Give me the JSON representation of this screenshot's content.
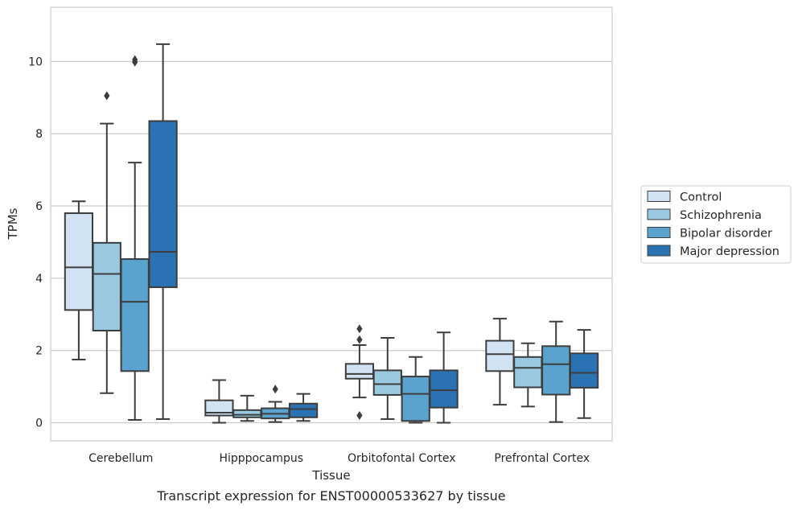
{
  "chart_data": {
    "type": "box",
    "xlabel": "Tissue",
    "ylabel": "TPMs",
    "caption": "Transcript expression for ENST00000533627 by tissue",
    "ylim": [
      -0.5,
      11.5
    ],
    "yticks": [
      0,
      2,
      4,
      6,
      8,
      10
    ],
    "grid": "horizontal",
    "legend_position": "right",
    "categories": [
      "Cerebellum",
      "Hipppocampus",
      "Orbitofontal Cortex",
      "Prefrontal Cortex"
    ],
    "series": [
      {
        "name": "Control",
        "color": "#d1e2f2",
        "boxes": [
          {
            "whislo": 1.75,
            "q1": 3.12,
            "med": 4.3,
            "q3": 5.8,
            "whishi": 6.13,
            "fliers": []
          },
          {
            "whislo": 0.0,
            "q1": 0.2,
            "med": 0.28,
            "q3": 0.62,
            "whishi": 1.18,
            "fliers": []
          },
          {
            "whislo": 0.7,
            "q1": 1.22,
            "med": 1.35,
            "q3": 1.63,
            "whishi": 2.15,
            "fliers": [
              2.6,
              2.3,
              0.2
            ]
          },
          {
            "whislo": 0.5,
            "q1": 1.43,
            "med": 1.9,
            "q3": 2.27,
            "whishi": 2.88,
            "fliers": []
          }
        ]
      },
      {
        "name": "Schizophrenia",
        "color": "#9ac8e0",
        "boxes": [
          {
            "whislo": 0.82,
            "q1": 2.55,
            "med": 4.12,
            "q3": 4.98,
            "whishi": 8.28,
            "fliers": [
              9.05
            ]
          },
          {
            "whislo": 0.05,
            "q1": 0.15,
            "med": 0.22,
            "q3": 0.35,
            "whishi": 0.75,
            "fliers": []
          },
          {
            "whislo": 0.1,
            "q1": 0.77,
            "med": 1.07,
            "q3": 1.45,
            "whishi": 2.35,
            "fliers": []
          },
          {
            "whislo": 0.45,
            "q1": 0.98,
            "med": 1.52,
            "q3": 1.82,
            "whishi": 2.2,
            "fliers": []
          }
        ]
      },
      {
        "name": "Bipolar disorder",
        "color": "#5ba3cf",
        "boxes": [
          {
            "whislo": 0.08,
            "q1": 1.43,
            "med": 3.35,
            "q3": 4.53,
            "whishi": 7.2,
            "fliers": [
              10.05,
              9.98
            ]
          },
          {
            "whislo": 0.02,
            "q1": 0.12,
            "med": 0.25,
            "q3": 0.4,
            "whishi": 0.58,
            "fliers": [
              0.93
            ]
          },
          {
            "whislo": 0.0,
            "q1": 0.05,
            "med": 0.8,
            "q3": 1.28,
            "whishi": 1.82,
            "fliers": []
          },
          {
            "whislo": 0.02,
            "q1": 0.78,
            "med": 1.62,
            "q3": 2.12,
            "whishi": 2.8,
            "fliers": []
          }
        ]
      },
      {
        "name": "Major depression",
        "color": "#2a72b2",
        "boxes": [
          {
            "whislo": 0.1,
            "q1": 3.75,
            "med": 4.73,
            "q3": 8.35,
            "whishi": 10.48,
            "fliers": []
          },
          {
            "whislo": 0.05,
            "q1": 0.15,
            "med": 0.38,
            "q3": 0.53,
            "whishi": 0.8,
            "fliers": []
          },
          {
            "whislo": 0.0,
            "q1": 0.42,
            "med": 0.9,
            "q3": 1.45,
            "whishi": 2.5,
            "fliers": []
          },
          {
            "whislo": 0.13,
            "q1": 0.97,
            "med": 1.38,
            "q3": 1.92,
            "whishi": 2.57,
            "fliers": []
          }
        ]
      }
    ]
  }
}
